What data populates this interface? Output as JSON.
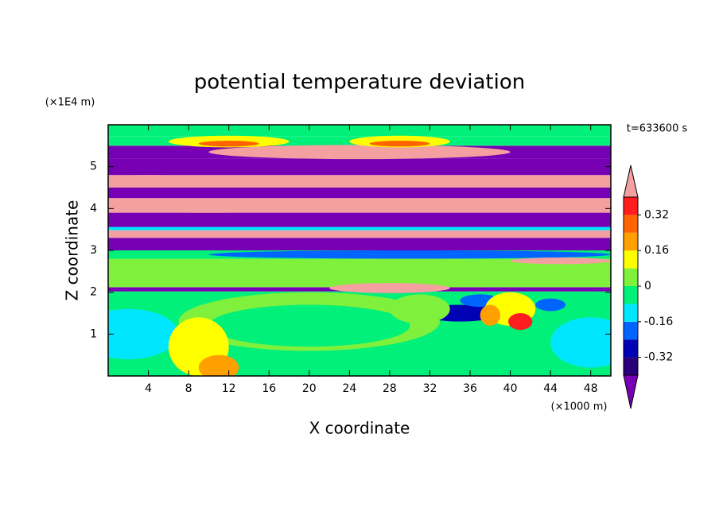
{
  "chart_data": {
    "type": "contour",
    "title": "potential temperature deviation",
    "xlabel": "X coordinate",
    "ylabel": "Z coordinate",
    "x_unit": "(×1000 m)",
    "y_unit": "(×1E4 m)",
    "time_label": "t=633600 s",
    "xlim": [
      0,
      50
    ],
    "xticks": [
      4,
      8,
      12,
      16,
      20,
      24,
      28,
      32,
      36,
      40,
      44,
      48
    ],
    "ylim": [
      0,
      6
    ],
    "yticks": [
      1,
      2,
      3,
      4,
      5
    ],
    "colorbar": {
      "levels": [
        -0.4,
        -0.32,
        -0.24,
        -0.16,
        -0.08,
        0,
        0.08,
        0.16,
        0.24,
        0.32,
        0.4
      ],
      "colors": [
        "#28007a",
        "#0000b4",
        "#0064ff",
        "#00e6ff",
        "#00f07a",
        "#7ff03c",
        "#ffff00",
        "#ffa000",
        "#ff6400",
        "#ff1e1e"
      ],
      "under_color": "#7800b4",
      "over_color": "#f5a0a0",
      "ticks": [
        -0.32,
        -0.16,
        0,
        0.16,
        0.32
      ]
    }
  }
}
